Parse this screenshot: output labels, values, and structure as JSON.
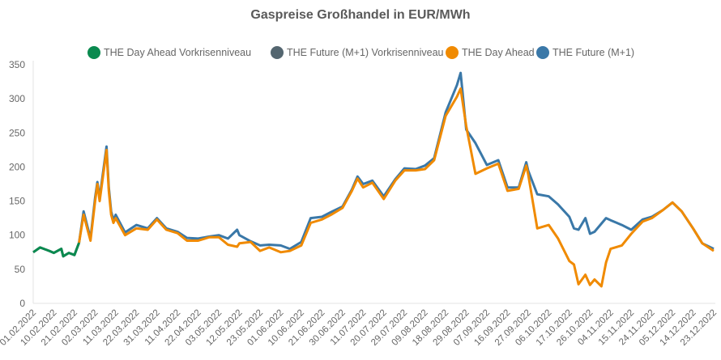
{
  "chart_data": {
    "type": "line",
    "title": "Gaspreise Großhandel in EUR/MWh",
    "ylim": [
      0,
      350
    ],
    "yticks": [
      0,
      50,
      100,
      150,
      200,
      250,
      300,
      350
    ],
    "grid": false,
    "legend_position": "top",
    "xticks": [
      "01.02.2022",
      "10.02.2022",
      "21.02.2022",
      "02.03.2022",
      "11.03.2022",
      "22.03.2022",
      "31.03.2022",
      "11.04.2022",
      "22.04.2022",
      "03.05.2022",
      "12.05.2022",
      "23.05.2022",
      "01.06.2022",
      "10.06.2022",
      "21.06.2022",
      "30.06.2022",
      "11.07.2022",
      "20.07.2022",
      "29.07.2022",
      "09.08.2022",
      "18.08.2022",
      "29.08.2022",
      "07.09.2022",
      "16.09.2022",
      "27.09.2022",
      "06.10.2022",
      "17.10.2022",
      "26.10.2022",
      "04.11.2022",
      "15.11.2022",
      "24.11.2022",
      "05.12.2022",
      "14.12.2022",
      "23.12.2022"
    ],
    "series": [
      {
        "name": "THE Day Ahead Vorkrisenniveau",
        "color": "#0a8a4f",
        "points": [
          [
            "01.02.2022",
            75
          ],
          [
            "04.02.2022",
            82
          ],
          [
            "08.02.2022",
            77
          ],
          [
            "10.02.2022",
            74
          ],
          [
            "14.02.2022",
            80
          ],
          [
            "15.02.2022",
            69
          ],
          [
            "18.02.2022",
            74
          ],
          [
            "21.02.2022",
            71
          ],
          [
            "23.02.2022",
            89
          ]
        ]
      },
      {
        "name": "THE Future (M+1) Vorkrisenniveau",
        "color": "#546670",
        "points": [
          [
            "01.02.2022",
            75
          ],
          [
            "04.02.2022",
            82
          ],
          [
            "08.02.2022",
            77
          ],
          [
            "10.02.2022",
            74
          ],
          [
            "14.02.2022",
            80
          ],
          [
            "15.02.2022",
            69
          ],
          [
            "18.02.2022",
            74
          ],
          [
            "21.02.2022",
            71
          ],
          [
            "23.02.2022",
            89
          ]
        ]
      },
      {
        "name": "THE Day Ahead",
        "color": "#f08a00",
        "points": [
          [
            "23.02.2022",
            89
          ],
          [
            "25.02.2022",
            130
          ],
          [
            "28.02.2022",
            92
          ],
          [
            "02.03.2022",
            150
          ],
          [
            "03.03.2022",
            175
          ],
          [
            "04.03.2022",
            150
          ],
          [
            "07.03.2022",
            225
          ],
          [
            "08.03.2022",
            165
          ],
          [
            "09.03.2022",
            130
          ],
          [
            "10.03.2022",
            118
          ],
          [
            "11.03.2022",
            125
          ],
          [
            "16.03.2022",
            100
          ],
          [
            "22.03.2022",
            110
          ],
          [
            "27.03.2022",
            108
          ],
          [
            "31.03.2022",
            123
          ],
          [
            "05.04.2022",
            108
          ],
          [
            "11.04.2022",
            103
          ],
          [
            "16.04.2022",
            92
          ],
          [
            "22.04.2022",
            92
          ],
          [
            "28.04.2022",
            97
          ],
          [
            "03.05.2022",
            97
          ],
          [
            "07.05.2022",
            86
          ],
          [
            "11.05.2022",
            83
          ],
          [
            "12.05.2022",
            88
          ],
          [
            "18.05.2022",
            90
          ],
          [
            "23.05.2022",
            77
          ],
          [
            "27.05.2022",
            82
          ],
          [
            "01.06.2022",
            75
          ],
          [
            "05.06.2022",
            77
          ],
          [
            "10.06.2022",
            85
          ],
          [
            "15.06.2022",
            118
          ],
          [
            "21.06.2022",
            123
          ],
          [
            "25.06.2022",
            130
          ],
          [
            "30.06.2022",
            140
          ],
          [
            "05.07.2022",
            165
          ],
          [
            "08.07.2022",
            183
          ],
          [
            "11.07.2022",
            170
          ],
          [
            "15.07.2022",
            177
          ],
          [
            "20.07.2022",
            153
          ],
          [
            "25.07.2022",
            180
          ],
          [
            "29.07.2022",
            195
          ],
          [
            "04.08.2022",
            195
          ],
          [
            "09.08.2022",
            197
          ],
          [
            "13.08.2022",
            210
          ],
          [
            "18.08.2022",
            275
          ],
          [
            "24.08.2022",
            303
          ],
          [
            "26.08.2022",
            315
          ],
          [
            "29.08.2022",
            260
          ],
          [
            "02.09.2022",
            190
          ],
          [
            "07.09.2022",
            198
          ],
          [
            "12.09.2022",
            205
          ],
          [
            "16.09.2022",
            165
          ],
          [
            "22.09.2022",
            168
          ],
          [
            "26.09.2022",
            202
          ],
          [
            "27.09.2022",
            190
          ],
          [
            "01.10.2022",
            110
          ],
          [
            "06.10.2022",
            115
          ],
          [
            "11.10.2022",
            95
          ],
          [
            "17.10.2022",
            62
          ],
          [
            "19.10.2022",
            57
          ],
          [
            "21.10.2022",
            28
          ],
          [
            "24.10.2022",
            42
          ],
          [
            "26.10.2022",
            27
          ],
          [
            "28.10.2022",
            35
          ],
          [
            "31.10.2022",
            25
          ],
          [
            "02.11.2022",
            60
          ],
          [
            "04.11.2022",
            80
          ],
          [
            "10.11.2022",
            85
          ],
          [
            "15.11.2022",
            102
          ],
          [
            "20.11.2022",
            120
          ],
          [
            "24.11.2022",
            125
          ],
          [
            "30.11.2022",
            137
          ],
          [
            "05.12.2022",
            148
          ],
          [
            "09.12.2022",
            135
          ],
          [
            "14.12.2022",
            110
          ],
          [
            "18.12.2022",
            88
          ],
          [
            "23.12.2022",
            77
          ]
        ]
      },
      {
        "name": "THE Future (M+1)",
        "color": "#3a78a8",
        "points": [
          [
            "23.02.2022",
            89
          ],
          [
            "25.02.2022",
            135
          ],
          [
            "28.02.2022",
            95
          ],
          [
            "02.03.2022",
            155
          ],
          [
            "03.03.2022",
            178
          ],
          [
            "04.03.2022",
            155
          ],
          [
            "07.03.2022",
            230
          ],
          [
            "08.03.2022",
            170
          ],
          [
            "09.03.2022",
            135
          ],
          [
            "10.03.2022",
            122
          ],
          [
            "11.03.2022",
            130
          ],
          [
            "16.03.2022",
            104
          ],
          [
            "22.03.2022",
            115
          ],
          [
            "27.03.2022",
            110
          ],
          [
            "31.03.2022",
            125
          ],
          [
            "05.04.2022",
            110
          ],
          [
            "11.04.2022",
            105
          ],
          [
            "16.04.2022",
            96
          ],
          [
            "22.04.2022",
            95
          ],
          [
            "28.04.2022",
            98
          ],
          [
            "03.05.2022",
            100
          ],
          [
            "07.05.2022",
            95
          ],
          [
            "11.05.2022",
            108
          ],
          [
            "12.05.2022",
            100
          ],
          [
            "18.05.2022",
            91
          ],
          [
            "23.05.2022",
            85
          ],
          [
            "27.05.2022",
            86
          ],
          [
            "01.06.2022",
            85
          ],
          [
            "05.06.2022",
            80
          ],
          [
            "10.06.2022",
            90
          ],
          [
            "15.06.2022",
            125
          ],
          [
            "21.06.2022",
            127
          ],
          [
            "25.06.2022",
            134
          ],
          [
            "30.06.2022",
            142
          ],
          [
            "05.07.2022",
            167
          ],
          [
            "08.07.2022",
            186
          ],
          [
            "11.07.2022",
            175
          ],
          [
            "15.07.2022",
            180
          ],
          [
            "20.07.2022",
            157
          ],
          [
            "25.07.2022",
            182
          ],
          [
            "29.07.2022",
            198
          ],
          [
            "04.08.2022",
            197
          ],
          [
            "09.08.2022",
            202
          ],
          [
            "13.08.2022",
            213
          ],
          [
            "18.08.2022",
            280
          ],
          [
            "24.08.2022",
            320
          ],
          [
            "26.08.2022",
            338
          ],
          [
            "29.08.2022",
            255
          ],
          [
            "02.09.2022",
            235
          ],
          [
            "07.09.2022",
            203
          ],
          [
            "12.09.2022",
            210
          ],
          [
            "16.09.2022",
            170
          ],
          [
            "22.09.2022",
            170
          ],
          [
            "26.09.2022",
            207
          ],
          [
            "27.09.2022",
            195
          ],
          [
            "01.10.2022",
            160
          ],
          [
            "06.10.2022",
            157
          ],
          [
            "11.10.2022",
            145
          ],
          [
            "17.10.2022",
            127
          ],
          [
            "19.10.2022",
            110
          ],
          [
            "21.10.2022",
            108
          ],
          [
            "24.10.2022",
            125
          ],
          [
            "26.10.2022",
            102
          ],
          [
            "28.10.2022",
            105
          ],
          [
            "31.10.2022",
            117
          ],
          [
            "02.11.2022",
            125
          ],
          [
            "04.11.2022",
            122
          ],
          [
            "10.11.2022",
            115
          ],
          [
            "15.11.2022",
            108
          ],
          [
            "20.11.2022",
            123
          ],
          [
            "24.11.2022",
            127
          ],
          [
            "30.11.2022",
            137
          ],
          [
            "05.12.2022",
            148
          ],
          [
            "09.12.2022",
            135
          ],
          [
            "14.12.2022",
            110
          ],
          [
            "18.12.2022",
            88
          ],
          [
            "23.12.2022",
            80
          ]
        ]
      }
    ]
  }
}
